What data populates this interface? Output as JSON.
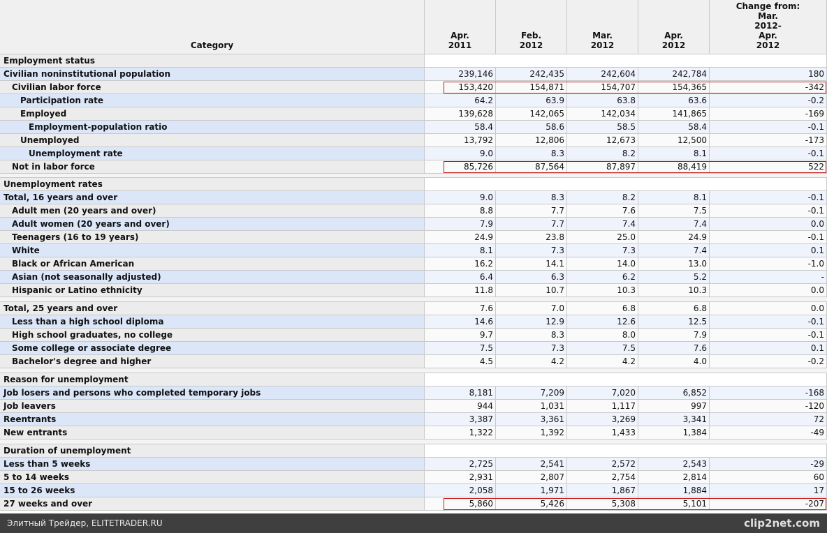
{
  "table": {
    "category_header": "Category",
    "columns": [
      [
        "Apr.",
        "2011"
      ],
      [
        "Feb.",
        "2012"
      ],
      [
        "Mar.",
        "2012"
      ],
      [
        "Apr.",
        "2012"
      ],
      [
        "Change from:",
        "Mar.",
        "2012-",
        "Apr.",
        "2012"
      ]
    ],
    "sections": [
      {
        "header": "Employment status",
        "rows": [
          {
            "label": "Civilian noninstitutional population",
            "indent": 0,
            "values": [
              "239,146",
              "242,435",
              "242,604",
              "242,784",
              "180"
            ]
          },
          {
            "label": "Civilian labor force",
            "indent": 1,
            "values": [
              "153,420",
              "154,871",
              "154,707",
              "154,365",
              "-342"
            ],
            "outlined": true
          },
          {
            "label": "Participation rate",
            "indent": 2,
            "values": [
              "64.2",
              "63.9",
              "63.8",
              "63.6",
              "-0.2"
            ]
          },
          {
            "label": "Employed",
            "indent": 2,
            "values": [
              "139,628",
              "142,065",
              "142,034",
              "141,865",
              "-169"
            ]
          },
          {
            "label": "Employment-population ratio",
            "indent": 3,
            "values": [
              "58.4",
              "58.6",
              "58.5",
              "58.4",
              "-0.1"
            ]
          },
          {
            "label": "Unemployed",
            "indent": 2,
            "values": [
              "13,792",
              "12,806",
              "12,673",
              "12,500",
              "-173"
            ]
          },
          {
            "label": "Unemployment rate",
            "indent": 3,
            "values": [
              "9.0",
              "8.3",
              "8.2",
              "8.1",
              "-0.1"
            ]
          },
          {
            "label": "Not in labor force",
            "indent": 1,
            "values": [
              "85,726",
              "87,564",
              "87,897",
              "88,419",
              "522"
            ],
            "outlined": true
          }
        ]
      },
      {
        "header": "Unemployment rates",
        "rows": [
          {
            "label": "Total, 16 years and over",
            "indent": 0,
            "values": [
              "9.0",
              "8.3",
              "8.2",
              "8.1",
              "-0.1"
            ]
          },
          {
            "label": "Adult men (20 years and over)",
            "indent": 1,
            "values": [
              "8.8",
              "7.7",
              "7.6",
              "7.5",
              "-0.1"
            ]
          },
          {
            "label": "Adult women (20 years and over)",
            "indent": 1,
            "values": [
              "7.9",
              "7.7",
              "7.4",
              "7.4",
              "0.0"
            ]
          },
          {
            "label": "Teenagers (16 to 19 years)",
            "indent": 1,
            "values": [
              "24.9",
              "23.8",
              "25.0",
              "24.9",
              "-0.1"
            ]
          },
          {
            "label": "White",
            "indent": 1,
            "values": [
              "8.1",
              "7.3",
              "7.3",
              "7.4",
              "0.1"
            ]
          },
          {
            "label": "Black or African American",
            "indent": 1,
            "values": [
              "16.2",
              "14.1",
              "14.0",
              "13.0",
              "-1.0"
            ]
          },
          {
            "label": "Asian (not seasonally adjusted)",
            "indent": 1,
            "values": [
              "6.4",
              "6.3",
              "6.2",
              "5.2",
              "-"
            ]
          },
          {
            "label": "Hispanic or Latino ethnicity",
            "indent": 1,
            "values": [
              "11.8",
              "10.7",
              "10.3",
              "10.3",
              "0.0"
            ]
          }
        ]
      },
      {
        "rows": [
          {
            "label": "Total, 25 years and over",
            "indent": 0,
            "values": [
              "7.6",
              "7.0",
              "6.8",
              "6.8",
              "0.0"
            ]
          },
          {
            "label": "Less than a high school diploma",
            "indent": 1,
            "values": [
              "14.6",
              "12.9",
              "12.6",
              "12.5",
              "-0.1"
            ]
          },
          {
            "label": "High school graduates, no college",
            "indent": 1,
            "values": [
              "9.7",
              "8.3",
              "8.0",
              "7.9",
              "-0.1"
            ]
          },
          {
            "label": "Some college or associate degree",
            "indent": 1,
            "values": [
              "7.5",
              "7.3",
              "7.5",
              "7.6",
              "0.1"
            ]
          },
          {
            "label": "Bachelor's degree and higher",
            "indent": 1,
            "values": [
              "4.5",
              "4.2",
              "4.2",
              "4.0",
              "-0.2"
            ]
          }
        ]
      },
      {
        "header": "Reason for unemployment",
        "rows": [
          {
            "label": "Job losers and persons who completed temporary jobs",
            "indent": 0,
            "values": [
              "8,181",
              "7,209",
              "7,020",
              "6,852",
              "-168"
            ]
          },
          {
            "label": "Job leavers",
            "indent": 0,
            "values": [
              "944",
              "1,031",
              "1,117",
              "997",
              "-120"
            ]
          },
          {
            "label": "Reentrants",
            "indent": 0,
            "values": [
              "3,387",
              "3,361",
              "3,269",
              "3,341",
              "72"
            ]
          },
          {
            "label": "New entrants",
            "indent": 0,
            "values": [
              "1,322",
              "1,392",
              "1,433",
              "1,384",
              "-49"
            ]
          }
        ]
      },
      {
        "header": "Duration of unemployment",
        "rows": [
          {
            "label": "Less than 5 weeks",
            "indent": 0,
            "values": [
              "2,725",
              "2,541",
              "2,572",
              "2,543",
              "-29"
            ]
          },
          {
            "label": "5 to 14 weeks",
            "indent": 0,
            "values": [
              "2,931",
              "2,807",
              "2,754",
              "2,814",
              "60"
            ]
          },
          {
            "label": "15 to 26 weeks",
            "indent": 0,
            "values": [
              "2,058",
              "1,971",
              "1,867",
              "1,884",
              "17"
            ]
          },
          {
            "label": "27 weeks and over",
            "indent": 0,
            "values": [
              "5,860",
              "5,426",
              "5,308",
              "5,101",
              "-207"
            ],
            "outlined": true
          }
        ]
      }
    ]
  },
  "footer": {
    "caption": "Элитный Трейдер, ELITETRADER.RU",
    "logo": "clip2net.com"
  }
}
